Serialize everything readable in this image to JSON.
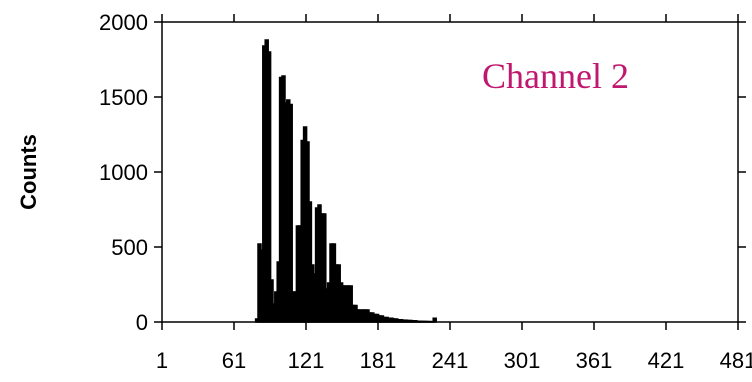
{
  "chart_data": {
    "type": "bar",
    "xlabel": "",
    "ylabel": "Counts",
    "xlim": [
      1,
      481
    ],
    "ylim": [
      0,
      2000
    ],
    "x_ticks": [
      1,
      61,
      121,
      181,
      241,
      301,
      361,
      421,
      481
    ],
    "y_ticks": [
      0,
      500,
      1000,
      1500,
      2000
    ],
    "grid": false,
    "annotation": "Channel 2",
    "colors": {
      "bars": "#000000",
      "annotation": "#c0186e",
      "axes": "#000000"
    },
    "series": [
      {
        "x": [
          79,
          81,
          83,
          85,
          87,
          89,
          91,
          93,
          95,
          97,
          99,
          101,
          103,
          105,
          107,
          109,
          111,
          113,
          115,
          117,
          119,
          121,
          123,
          125,
          127,
          129,
          131,
          133,
          135,
          137,
          139,
          141,
          143,
          145,
          147,
          149,
          151,
          153,
          155,
          157,
          159,
          161,
          163,
          165,
          167,
          169,
          171,
          173,
          175,
          177,
          179,
          181,
          183,
          185,
          187,
          189,
          191,
          193,
          195,
          197,
          199,
          201,
          203,
          205,
          207,
          209,
          211,
          213,
          215,
          217,
          219,
          221,
          223,
          225,
          227
        ],
        "values": [
          20,
          520,
          480,
          1840,
          1880,
          1800,
          280,
          120,
          200,
          400,
          1630,
          1640,
          1460,
          1480,
          1450,
          200,
          200,
          640,
          640,
          1210,
          1300,
          1200,
          800,
          380,
          320,
          760,
          780,
          720,
          720,
          220,
          260,
          520,
          520,
          380,
          380,
          260,
          240,
          240,
          240,
          240,
          110,
          110,
          80,
          80,
          80,
          80,
          80,
          60,
          60,
          50,
          50,
          40,
          40,
          30,
          30,
          25,
          25,
          20,
          20,
          15,
          15,
          12,
          12,
          10,
          10,
          8,
          8,
          5,
          5,
          4,
          4,
          3,
          3,
          2,
          25
        ]
      }
    ]
  }
}
